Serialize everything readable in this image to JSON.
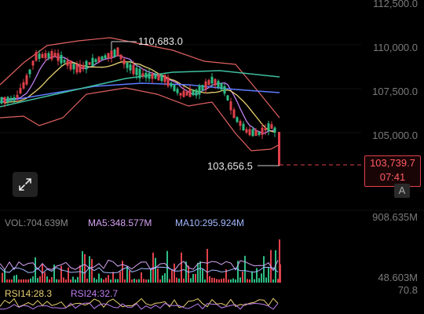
{
  "price_axis": {
    "ticks": [
      "112,500.0",
      "110,000.0",
      "107,500.0",
      "105,000.0"
    ],
    "current_price": "103,739.7",
    "countdown": "07:41",
    "auto_button": "A"
  },
  "annotations": {
    "high_label": "110,683.0",
    "low_label": "103,656.5"
  },
  "volume": {
    "vol_label": "VOL:704.639M",
    "ma5_label": "MA5:348.577M",
    "ma10_label": "MA10:295.924M",
    "max_tick": "908.635M",
    "min_tick": "48.603M"
  },
  "rsi": {
    "rsi14_label": "RSI14:28.3",
    "rsi24_label": "RSI24:32.7",
    "tick": "70.8"
  },
  "colors": {
    "up": "#2ebd85",
    "down": "#e0414b",
    "ma_purple": "#c07ef0",
    "ma_yellow": "#e8d070",
    "ma_blue": "#5d7bff",
    "ma_teal": "#3fbfa0",
    "boll": "#e06060",
    "vol_label": "#888888",
    "ma5": "#d7a4f5",
    "ma10": "#a3b9ff"
  },
  "icons": {
    "expand": "expand-arrows-icon"
  }
}
